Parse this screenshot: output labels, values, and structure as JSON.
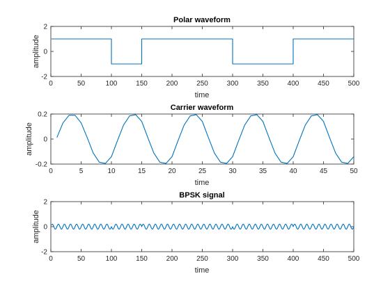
{
  "colors": {
    "series": "#0072BD",
    "axes": "#262626",
    "background": "#ffffff"
  },
  "chart_data": [
    {
      "type": "line",
      "title": "Polar waveform",
      "xlabel": "time",
      "ylabel": "amplitude",
      "xlim": [
        0,
        500
      ],
      "ylim": [
        -2,
        2
      ],
      "xticks": [
        0,
        50,
        100,
        150,
        200,
        250,
        300,
        350,
        400,
        450,
        500
      ],
      "yticks": [
        -2,
        0,
        2
      ],
      "grid": false,
      "series": [
        {
          "x": [
            1,
            100,
            100,
            150,
            150,
            300,
            300,
            400,
            400,
            500
          ],
          "y": [
            1,
            1,
            -1,
            -1,
            1,
            1,
            -1,
            -1,
            1,
            1
          ]
        }
      ]
    },
    {
      "type": "line",
      "title": "Carrier waveform",
      "xlabel": "time",
      "ylabel": "amplitude",
      "xlim": [
        0,
        50
      ],
      "ylim": [
        -0.2,
        0.2
      ],
      "xticks": [
        0,
        5,
        10,
        15,
        20,
        25,
        30,
        35,
        40,
        45,
        50
      ],
      "yticks": [
        -0.2,
        0,
        0.2
      ],
      "grid": false,
      "series": [
        {
          "x": [
            1,
            2,
            3,
            4,
            5,
            6,
            7,
            8,
            9,
            10,
            11,
            12,
            13,
            14,
            15,
            16,
            17,
            18,
            19,
            20,
            21,
            22,
            23,
            24,
            25,
            26,
            27,
            28,
            29,
            30,
            31,
            32,
            33,
            34,
            35,
            36,
            37,
            38,
            39,
            40,
            41,
            42,
            43,
            44,
            45,
            46,
            47,
            48,
            49,
            50
          ],
          "y": [
            0.012,
            0.129,
            0.19,
            0.19,
            0.129,
            0.012,
            -0.112,
            -0.185,
            -0.195,
            -0.141,
            -0.012,
            0.112,
            0.185,
            0.195,
            0.141,
            0.012,
            -0.112,
            -0.185,
            -0.195,
            -0.141,
            -0.012,
            0.112,
            0.185,
            0.195,
            0.141,
            0.012,
            -0.112,
            -0.185,
            -0.195,
            -0.141,
            -0.012,
            0.112,
            0.185,
            0.195,
            0.141,
            0.012,
            -0.112,
            -0.185,
            -0.195,
            -0.141,
            -0.012,
            0.112,
            0.185,
            0.195,
            0.141,
            0.012,
            -0.112,
            -0.185,
            -0.195,
            -0.141
          ]
        }
      ]
    },
    {
      "type": "line",
      "title": "BPSK signal",
      "xlabel": "time",
      "ylabel": "amplitude",
      "xlim": [
        0,
        500
      ],
      "ylim": [
        -2,
        2
      ],
      "xticks": [
        0,
        50,
        100,
        150,
        200,
        250,
        300,
        350,
        400,
        450,
        500
      ],
      "yticks": [
        -2,
        0,
        2
      ],
      "grid": false,
      "series": [
        {
          "function": "polar(t) * 0.2 * sin(2*pi*t/10)",
          "x_range": [
            1,
            500
          ],
          "cycles_per_unit": 0.1,
          "amplitude": 0.2
        }
      ]
    }
  ]
}
